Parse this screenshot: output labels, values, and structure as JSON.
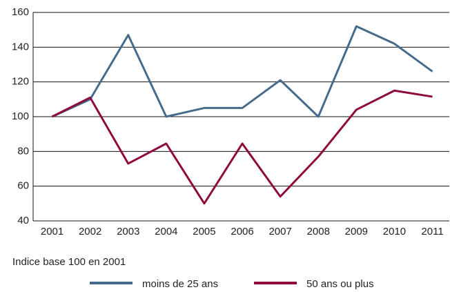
{
  "chart_data": {
    "type": "line",
    "categories": [
      "2001",
      "2002",
      "2003",
      "2004",
      "2005",
      "2006",
      "2007",
      "2008",
      "2009",
      "2010",
      "2011"
    ],
    "series": [
      {
        "name": "moins de 25 ans",
        "color": "#466b8a",
        "values": [
          100,
          110,
          147,
          100,
          105,
          105,
          121,
          100,
          152,
          142,
          126
        ]
      },
      {
        "name": "50 ans ou plus",
        "color": "#8e0b3d",
        "values": [
          100,
          111,
          73,
          84.5,
          50,
          84.5,
          54,
          77,
          104,
          115,
          111.5
        ]
      }
    ],
    "ylim": [
      40,
      160
    ],
    "yticks": [
      40,
      60,
      80,
      100,
      120,
      140,
      160
    ],
    "grid": true,
    "annotation": "Indice base 100 en 2001"
  }
}
